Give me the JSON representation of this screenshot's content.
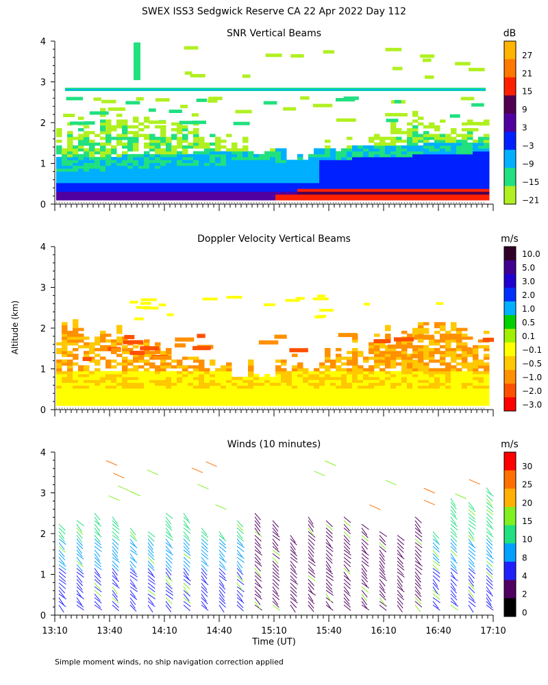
{
  "title": "SWEX ISS3 Sedgwick Reserve CA  22 Apr 2022 Day 112",
  "y_axis_label": "Altitude (km)",
  "x_axis_label": "Time (UT)",
  "footnote": "Simple moment winds, no ship navigation correction applied",
  "chart_data": [
    {
      "type": "heatmap",
      "title": "SNR Vertical Beams",
      "ylim": [
        0,
        4
      ],
      "yticks": [
        "0",
        "1",
        "2",
        "3",
        "4"
      ],
      "xlim": [
        "13:10",
        "17:10"
      ],
      "colorbar": {
        "unit": "dB",
        "labels": [
          "27",
          "21",
          "15",
          "9",
          "3",
          "−3",
          "−9",
          "−15",
          "−21"
        ],
        "colors": [
          "#ffb400",
          "#ff7800",
          "#ff2000",
          "#500050",
          "#5000a0",
          "#0020ff",
          "#00b0ff",
          "#20e080",
          "#b0f020"
        ]
      }
    },
    {
      "type": "heatmap",
      "title": "Doppler Velocity Vertical Beams",
      "ylim": [
        0,
        4
      ],
      "yticks": [
        "0",
        "1",
        "2",
        "3",
        "4"
      ],
      "xlim": [
        "13:10",
        "17:10"
      ],
      "colorbar": {
        "unit": "m/s",
        "labels": [
          "10.0",
          "5.0",
          "3.0",
          "2.0",
          "1.0",
          "0.5",
          "0.1",
          "−0.1",
          "−0.5",
          "−1.0",
          "−2.0",
          "−3.0"
        ],
        "colors": [
          "#300028",
          "#400090",
          "#2000d0",
          "#0030ff",
          "#00b0ff",
          "#00d000",
          "#a0f000",
          "#ffff00",
          "#ffc800",
          "#ff9000",
          "#ff5000",
          "#ff0000"
        ]
      }
    },
    {
      "type": "scatter",
      "title": "Winds (10 minutes)",
      "ylim": [
        0,
        4
      ],
      "yticks": [
        "0",
        "1",
        "2",
        "3",
        "4"
      ],
      "xticks": [
        "13:10",
        "13:40",
        "14:10",
        "14:40",
        "15:10",
        "15:40",
        "16:10",
        "16:40",
        "17:10"
      ],
      "colorbar": {
        "unit": "m/s",
        "labels": [
          "30",
          "25",
          "20",
          "15",
          "10",
          "8",
          "4",
          "2",
          "0"
        ],
        "colors": [
          "#ff0000",
          "#ff7000",
          "#ffb000",
          "#80f020",
          "#20e080",
          "#00a0ff",
          "#2020ff",
          "#500060",
          "#000000"
        ]
      }
    }
  ]
}
